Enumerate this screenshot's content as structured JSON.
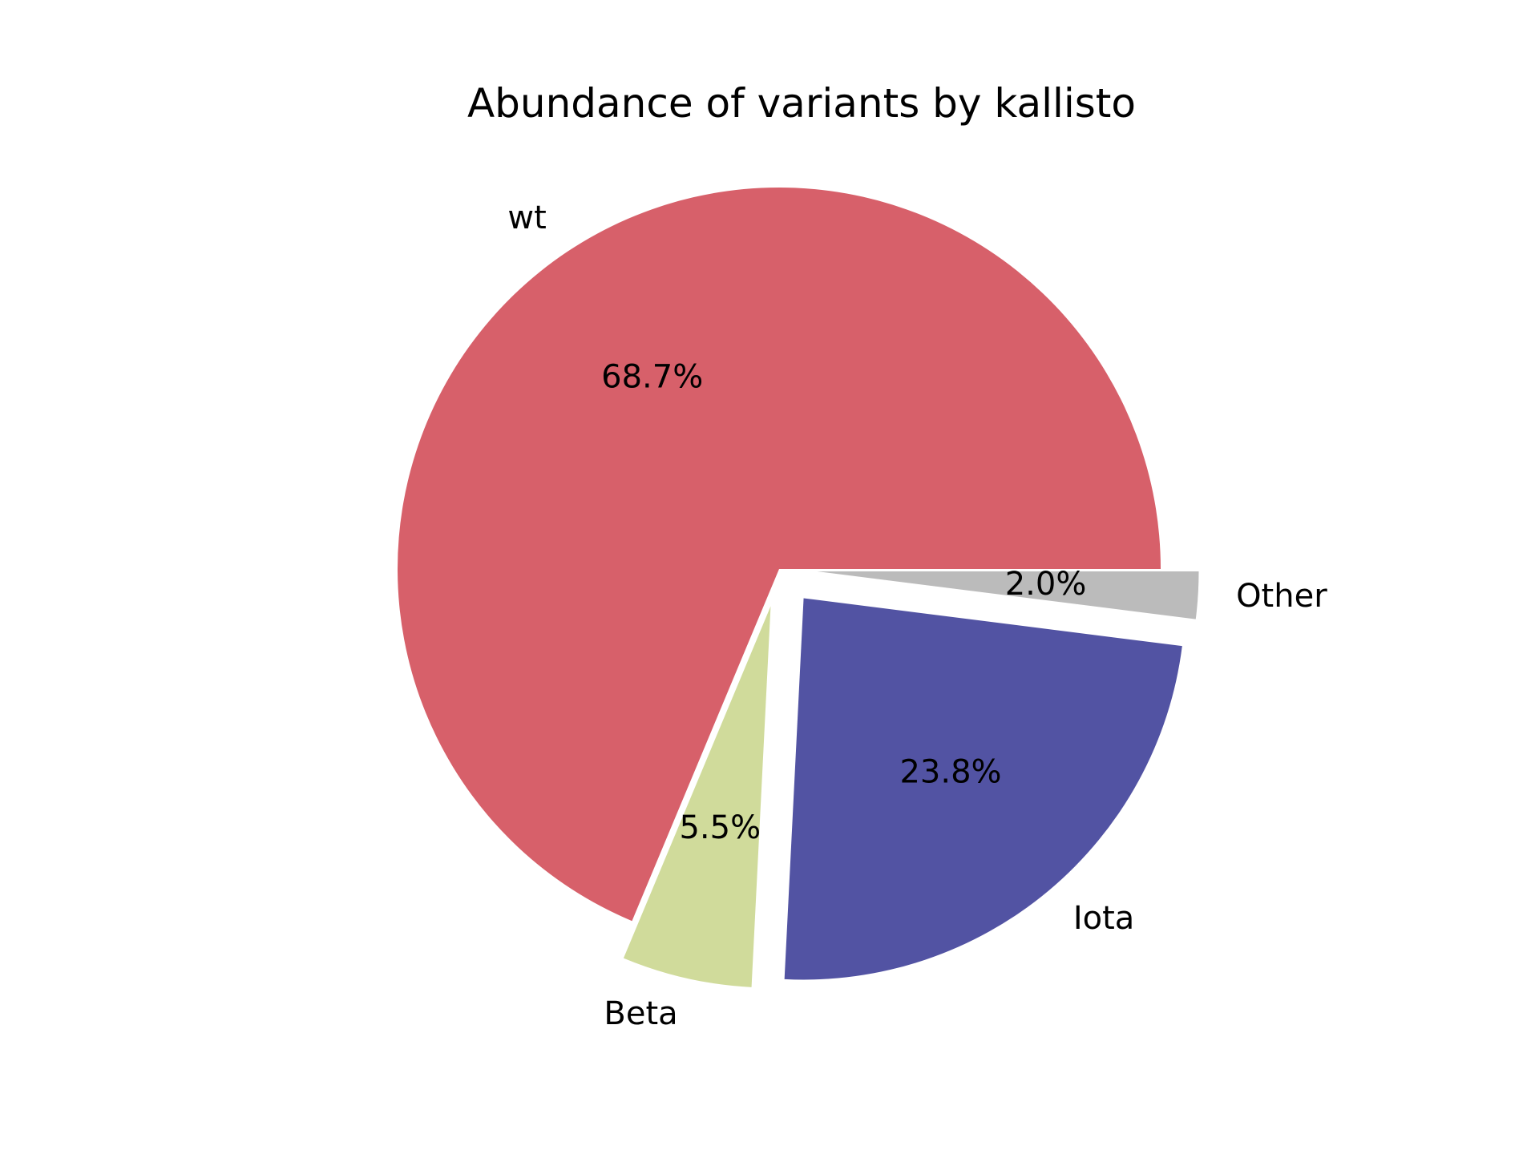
{
  "chart_data": {
    "type": "pie",
    "title": "Abundance of variants by kallisto",
    "slices": [
      {
        "label": "wt",
        "value": 68.7,
        "pct_label": "68.7%",
        "color": "#d7606a",
        "explode": false
      },
      {
        "label": "Beta",
        "value": 5.5,
        "pct_label": "5.5%",
        "color": "#d0db9b",
        "explode": true
      },
      {
        "label": "Iota",
        "value": 23.8,
        "pct_label": "23.8%",
        "color": "#5253a3",
        "explode": true
      },
      {
        "label": "Other",
        "value": 2.0,
        "pct_label": "2.0%",
        "color": "#bbbbbb",
        "explode": true
      }
    ],
    "start_angle_deg": 0,
    "direction": "counterclockwise",
    "legend": "none"
  }
}
